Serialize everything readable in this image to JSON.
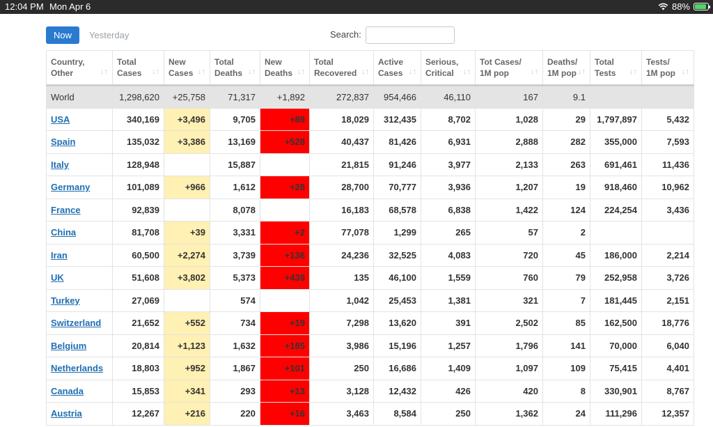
{
  "status": {
    "time": "12:04 PM",
    "date": "Mon Apr 6",
    "battery": "88%"
  },
  "tabs": {
    "now": "Now",
    "yesterday": "Yesterday"
  },
  "search": {
    "label": "Search:",
    "value": ""
  },
  "columns": [
    [
      "Country,",
      "Other"
    ],
    [
      "Total",
      "Cases"
    ],
    [
      "New",
      "Cases"
    ],
    [
      "Total",
      "Deaths"
    ],
    [
      "New",
      "Deaths"
    ],
    [
      "Total",
      "Recovered"
    ],
    [
      "Active",
      "Cases"
    ],
    [
      "Serious,",
      "Critical"
    ],
    [
      "Tot Cases/",
      "1M pop"
    ],
    [
      "Deaths/",
      "1M pop"
    ],
    [
      "Total",
      "Tests"
    ],
    [
      "Tests/",
      "1M pop"
    ]
  ],
  "world": [
    "World",
    "1,298,620",
    "+25,758",
    "71,317",
    "+1,892",
    "272,837",
    "954,466",
    "46,110",
    "167",
    "9.1",
    "",
    ""
  ],
  "rows": [
    [
      "USA",
      "340,169",
      "+3,496",
      "9,705",
      "+89",
      "18,029",
      "312,435",
      "8,702",
      "1,028",
      "29",
      "1,797,897",
      "5,432"
    ],
    [
      "Spain",
      "135,032",
      "+3,386",
      "13,169",
      "+528",
      "40,437",
      "81,426",
      "6,931",
      "2,888",
      "282",
      "355,000",
      "7,593"
    ],
    [
      "Italy",
      "128,948",
      "",
      "15,887",
      "",
      "21,815",
      "91,246",
      "3,977",
      "2,133",
      "263",
      "691,461",
      "11,436"
    ],
    [
      "Germany",
      "101,089",
      "+966",
      "1,612",
      "+28",
      "28,700",
      "70,777",
      "3,936",
      "1,207",
      "19",
      "918,460",
      "10,962"
    ],
    [
      "France",
      "92,839",
      "",
      "8,078",
      "",
      "16,183",
      "68,578",
      "6,838",
      "1,422",
      "124",
      "224,254",
      "3,436"
    ],
    [
      "China",
      "81,708",
      "+39",
      "3,331",
      "+2",
      "77,078",
      "1,299",
      "265",
      "57",
      "2",
      "",
      ""
    ],
    [
      "Iran",
      "60,500",
      "+2,274",
      "3,739",
      "+136",
      "24,236",
      "32,525",
      "4,083",
      "720",
      "45",
      "186,000",
      "2,214"
    ],
    [
      "UK",
      "51,608",
      "+3,802",
      "5,373",
      "+439",
      "135",
      "46,100",
      "1,559",
      "760",
      "79",
      "252,958",
      "3,726"
    ],
    [
      "Turkey",
      "27,069",
      "",
      "574",
      "",
      "1,042",
      "25,453",
      "1,381",
      "321",
      "7",
      "181,445",
      "2,151"
    ],
    [
      "Switzerland",
      "21,652",
      "+552",
      "734",
      "+19",
      "7,298",
      "13,620",
      "391",
      "2,502",
      "85",
      "162,500",
      "18,776"
    ],
    [
      "Belgium",
      "20,814",
      "+1,123",
      "1,632",
      "+185",
      "3,986",
      "15,196",
      "1,257",
      "1,796",
      "141",
      "70,000",
      "6,040"
    ],
    [
      "Netherlands",
      "18,803",
      "+952",
      "1,867",
      "+101",
      "250",
      "16,686",
      "1,409",
      "1,097",
      "109",
      "75,415",
      "4,401"
    ],
    [
      "Canada",
      "15,853",
      "+341",
      "293",
      "+13",
      "3,128",
      "12,432",
      "426",
      "420",
      "8",
      "330,901",
      "8,767"
    ],
    [
      "Austria",
      "12,267",
      "+216",
      "220",
      "+16",
      "3,463",
      "8,584",
      "250",
      "1,362",
      "24",
      "111,296",
      "12,357"
    ]
  ],
  "colors": {
    "new_cases_highlight": "#fff0b3",
    "new_deaths_highlight": "#ff0000",
    "link": "#1f6fb2",
    "button": "#2a7ad0"
  }
}
